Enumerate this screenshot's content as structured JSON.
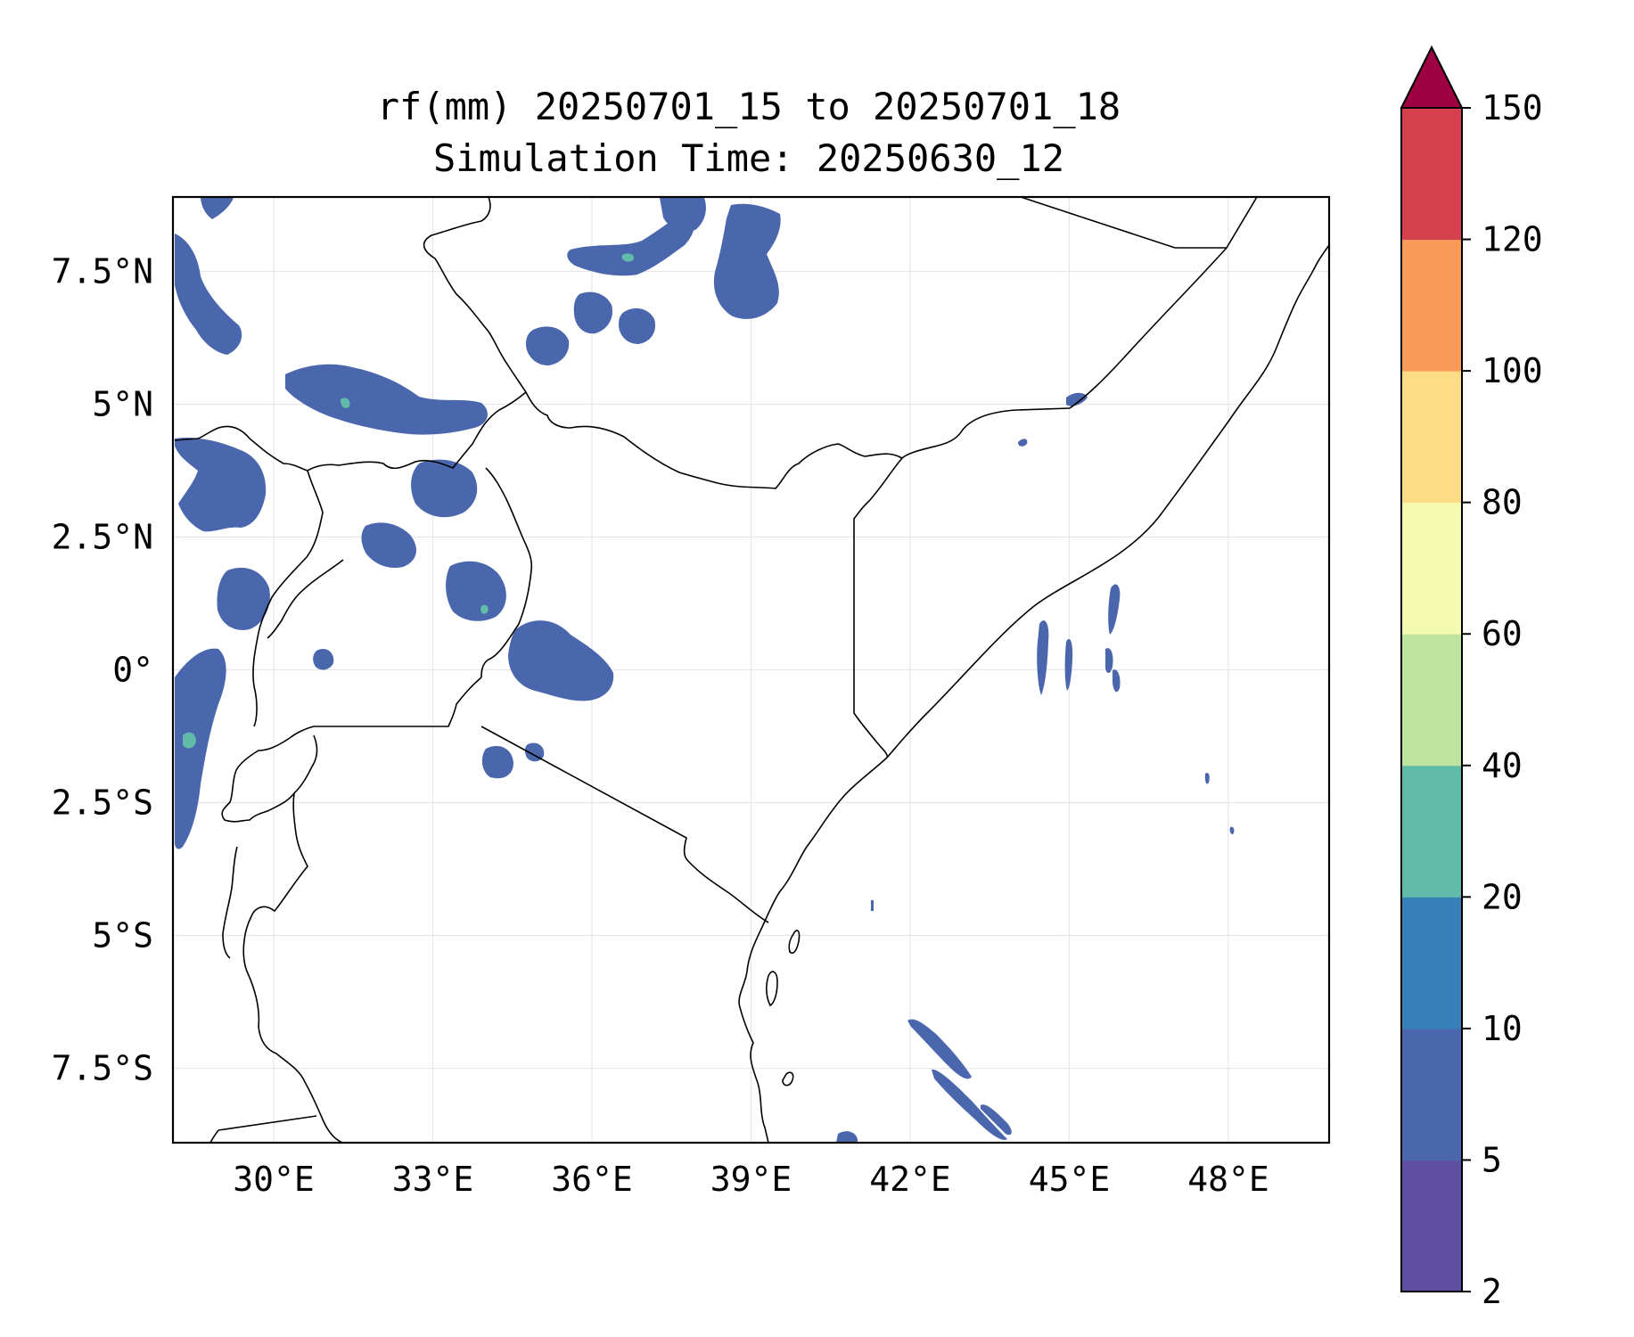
{
  "title": "rf(mm) 20250701_15 to 20250701_18",
  "subtitle": "Simulation Time: 20250630_12",
  "map": {
    "lon_range": [
      28.1,
      49.9
    ],
    "lat_range": [
      -8.9,
      8.9
    ],
    "gridlines": true,
    "lon_ticks": [
      {
        "value": 30,
        "label": "30°E"
      },
      {
        "value": 33,
        "label": "33°E"
      },
      {
        "value": 36,
        "label": "36°E"
      },
      {
        "value": 39,
        "label": "39°E"
      },
      {
        "value": 42,
        "label": "42°E"
      },
      {
        "value": 45,
        "label": "45°E"
      },
      {
        "value": 48,
        "label": "48°E"
      }
    ],
    "lat_ticks": [
      {
        "value": 7.5,
        "label": "7.5°N"
      },
      {
        "value": 5,
        "label": "5°N"
      },
      {
        "value": 2.5,
        "label": "2.5°N"
      },
      {
        "value": 0,
        "label": "0°"
      },
      {
        "value": -2.5,
        "label": "2.5°S"
      },
      {
        "value": -5,
        "label": "5°S"
      },
      {
        "value": -7.5,
        "label": "7.5°S"
      }
    ]
  },
  "colorbar": {
    "levels": [
      "2",
      "5",
      "10",
      "20",
      "40",
      "60",
      "80",
      "100",
      "120",
      "150"
    ],
    "colors": [
      "#5e4fa2",
      "#4a67ad",
      "#3880b9",
      "#61bba9",
      "#bfe4a0",
      "#f4fbb1",
      "#fddc87",
      "#fb9b5a",
      "#d63f4e",
      "#9e0142"
    ],
    "extend": "max"
  }
}
